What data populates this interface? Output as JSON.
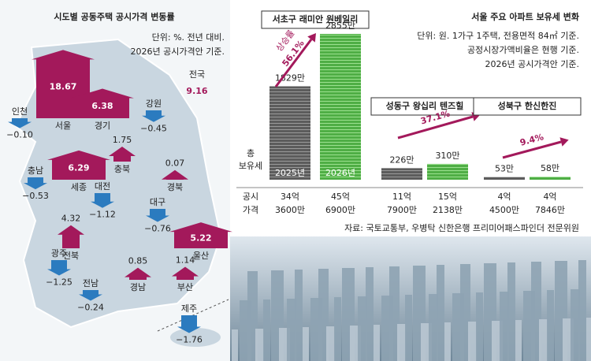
{
  "map_panel": {
    "title": "시도별 공동주택 공시가격 변동률",
    "notes": [
      "단위: %. 전년 대비.",
      "2026년 공시가격안 기준."
    ],
    "national": {
      "name": "전국",
      "value": 9.16
    },
    "regions": [
      {
        "name": "서울",
        "value": 18.67
      },
      {
        "name": "경기",
        "value": 6.38
      },
      {
        "name": "강원",
        "value": -0.45,
        "label": "−0.45"
      },
      {
        "name": "인천",
        "value": -0.1,
        "label": "−0.10"
      },
      {
        "name": "세종",
        "value": 6.29
      },
      {
        "name": "충북",
        "value": 1.75
      },
      {
        "name": "경북",
        "value": 0.07
      },
      {
        "name": "충남",
        "value": -0.53,
        "label": "−0.53"
      },
      {
        "name": "대전",
        "value": -1.12,
        "label": "−1.12"
      },
      {
        "name": "대구",
        "value": -0.76,
        "label": "−0.76"
      },
      {
        "name": "전북",
        "value": 4.32
      },
      {
        "name": "울산",
        "value": 5.22
      },
      {
        "name": "경남",
        "value": 0.85
      },
      {
        "name": "부산",
        "value": 1.14
      },
      {
        "name": "광주",
        "value": -1.25,
        "label": "−1.25"
      },
      {
        "name": "전남",
        "value": -0.24,
        "label": "−0.24"
      },
      {
        "name": "제주",
        "value": -1.76,
        "label": "−1.76"
      }
    ]
  },
  "tax_panel": {
    "title": "서울 주요 아파트 보유세 변화",
    "notes": [
      "단위: 원. 1가구 1주택, 전용면적 84㎡ 기준.",
      "공정시장가액비율은 현행 기준.",
      "2026년 공시가격안 기준."
    ],
    "tax_row_label": [
      "총",
      "보유세"
    ],
    "price_row_label": [
      "공시",
      "가격"
    ],
    "years": [
      "2025년",
      "2026년"
    ],
    "rate_label": "상승률",
    "apartments": [
      {
        "name": "서초구 래미안 원베일리",
        "tax": [
          {
            "value": 1829,
            "label": "1829만"
          },
          {
            "value": 2855,
            "label": "2855만"
          }
        ],
        "price": [
          [
            "34억",
            "3600만"
          ],
          [
            "45억",
            "6900만"
          ]
        ],
        "increase": {
          "value": 56.1,
          "label": "56.1%"
        }
      },
      {
        "name": "성동구 왕십리 텐즈힐",
        "tax": [
          {
            "value": 226,
            "label": "226만"
          },
          {
            "value": 310,
            "label": "310만"
          }
        ],
        "price": [
          [
            "11억",
            "7900만"
          ],
          [
            "15억",
            "2138만"
          ]
        ],
        "increase": {
          "value": 37.1,
          "label": "37.1%"
        }
      },
      {
        "name": "성북구 한신한진",
        "tax": [
          {
            "value": 53,
            "label": "53만"
          },
          {
            "value": 58,
            "label": "58만"
          }
        ],
        "price": [
          [
            "4억",
            "4500만"
          ],
          [
            "4억",
            "7846만"
          ]
        ],
        "increase": {
          "value": 9.4,
          "label": "9.4%"
        }
      }
    ],
    "source": "자료: 국토교통부, 우병탁 신한은행 프리미어패스파인더 전문위원"
  }
}
